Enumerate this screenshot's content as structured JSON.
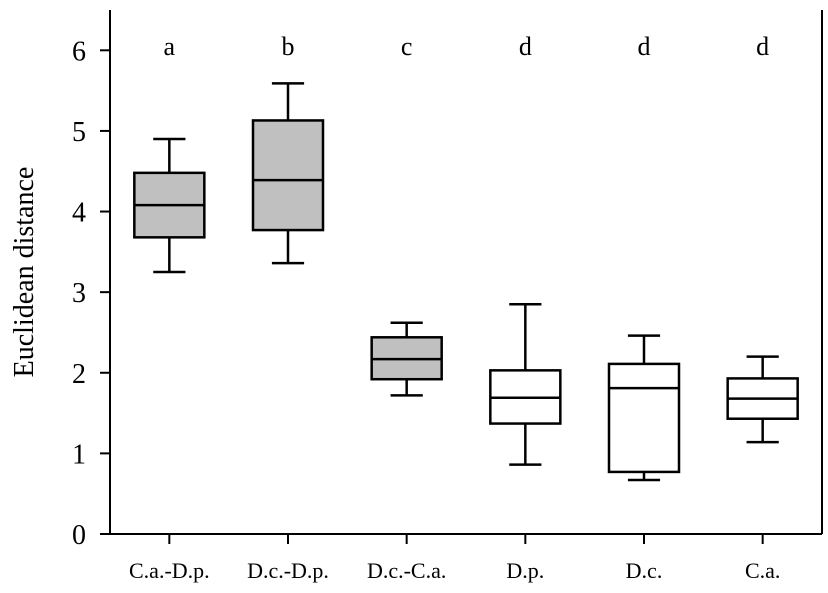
{
  "chart_data": {
    "type": "box",
    "ylabel": "Euclidean distance",
    "xlabel": "",
    "ylim": [
      0,
      6.5
    ],
    "yticks": [
      0,
      1,
      2,
      3,
      4,
      5,
      6
    ],
    "grid": false,
    "categories": [
      "C.a.-D.p.",
      "D.c.-D.p.",
      "D.c.-C.a.",
      "D.p.",
      "D.c.",
      "C.a."
    ],
    "significance_letters": [
      "a",
      "b",
      "c",
      "d",
      "d",
      "d"
    ],
    "boxes": [
      {
        "category": "C.a.-D.p.",
        "whisker_low": 3.25,
        "q1": 3.68,
        "median": 4.08,
        "q3": 4.48,
        "whisker_high": 4.9,
        "fill": "#c0c0c0"
      },
      {
        "category": "D.c.-D.p.",
        "whisker_low": 3.36,
        "q1": 3.77,
        "median": 4.39,
        "q3": 5.13,
        "whisker_high": 5.59,
        "fill": "#c0c0c0"
      },
      {
        "category": "D.c.-C.a.",
        "whisker_low": 1.72,
        "q1": 1.92,
        "median": 2.17,
        "q3": 2.44,
        "whisker_high": 2.62,
        "fill": "#c0c0c0"
      },
      {
        "category": "D.p.",
        "whisker_low": 0.86,
        "q1": 1.37,
        "median": 1.69,
        "q3": 2.03,
        "whisker_high": 2.85,
        "fill": "#ffffff"
      },
      {
        "category": "D.c.",
        "whisker_low": 0.67,
        "q1": 0.77,
        "median": 1.81,
        "q3": 2.11,
        "whisker_high": 2.46,
        "fill": "#ffffff"
      },
      {
        "category": "C.a.",
        "whisker_low": 1.14,
        "q1": 1.43,
        "median": 1.68,
        "q3": 1.93,
        "whisker_high": 2.2,
        "fill": "#ffffff"
      }
    ]
  }
}
